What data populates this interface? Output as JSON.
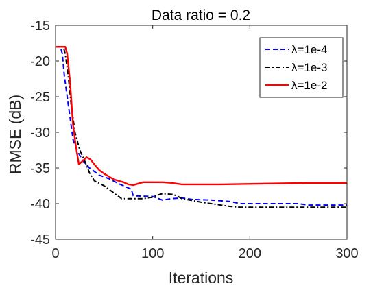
{
  "chart_data": {
    "type": "line",
    "title": "Data ratio = 0.2",
    "xlabel": "Iterations",
    "ylabel": "RMSE (dB)",
    "xlim": [
      0,
      300
    ],
    "ylim": [
      -45,
      -15
    ],
    "xticks": [
      0,
      100,
      200,
      300
    ],
    "yticks": [
      -45,
      -40,
      -35,
      -30,
      -25,
      -20,
      -15
    ],
    "grid": false,
    "legend_position": "top-right",
    "series": [
      {
        "name": "λ=1e-4",
        "color": "#0000ff",
        "dash": "dashed",
        "x": [
          0,
          5,
          7,
          9,
          12,
          15,
          18,
          22,
          28,
          35,
          45,
          55,
          65,
          75,
          78,
          80,
          100,
          110,
          120,
          130,
          140,
          160,
          180,
          190,
          200,
          250,
          260,
          300
        ],
        "y": [
          -18,
          -18,
          -19,
          -22,
          -25,
          -28,
          -31,
          -32.5,
          -34,
          -35,
          -36,
          -36.5,
          -37.2,
          -37.8,
          -38,
          -38.9,
          -39,
          -39.5,
          -39.3,
          -39.2,
          -39.4,
          -39.5,
          -39.7,
          -40,
          -40,
          -40,
          -40.2,
          -40.2
        ]
      },
      {
        "name": "λ=1e-3",
        "color": "#000000",
        "dash": "dashdot",
        "x": [
          0,
          8,
          10,
          13,
          16,
          20,
          25,
          30,
          35,
          40,
          50,
          60,
          68,
          75,
          80,
          90,
          100,
          105,
          110,
          120,
          125,
          130,
          150,
          170,
          180,
          190,
          200,
          300
        ],
        "y": [
          -18,
          -18,
          -19,
          -22,
          -26,
          -30,
          -32.5,
          -34,
          -35.7,
          -36.8,
          -37.5,
          -38.5,
          -39.3,
          -39.3,
          -39.3,
          -39.3,
          -39.1,
          -38.8,
          -38.6,
          -38.7,
          -38.9,
          -39.3,
          -39.8,
          -40.2,
          -40.4,
          -40.5,
          -40.5,
          -40.5
        ]
      },
      {
        "name": "λ=1e-2",
        "color": "#ff0000",
        "dash": "solid",
        "x": [
          0,
          10,
          12,
          15,
          18,
          21,
          24,
          28,
          32,
          36,
          40,
          45,
          50,
          55,
          60,
          65,
          70,
          75,
          80,
          90,
          110,
          120,
          130,
          170,
          260,
          300
        ],
        "y": [
          -18,
          -18,
          -19,
          -23,
          -29,
          -32,
          -34.5,
          -34,
          -33.5,
          -33.8,
          -34.5,
          -35.3,
          -35.8,
          -36.2,
          -36.6,
          -36.8,
          -37,
          -37.3,
          -37.4,
          -37,
          -37,
          -37.1,
          -37.3,
          -37.3,
          -37.1,
          -37.1
        ]
      }
    ]
  }
}
